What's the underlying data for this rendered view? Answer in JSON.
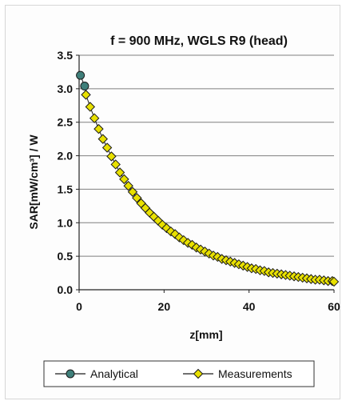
{
  "chart_data": {
    "type": "scatter",
    "title": "f = 900 MHz, WGLS R9 (head)",
    "xlabel": "z[mm]",
    "ylabel": "SAR[mW/cm³] / W",
    "xlim": [
      0,
      60
    ],
    "ylim": [
      0,
      3.5
    ],
    "xticks": [
      "0",
      "20",
      "40",
      "60"
    ],
    "yticks": [
      "0.0",
      "0.5",
      "1.0",
      "1.5",
      "2.0",
      "2.5",
      "3.0",
      "3.5"
    ],
    "grid": "horizontal",
    "legend_position": "bottom",
    "series": [
      {
        "name": "Analytical",
        "color": "#3f7f7a",
        "marker": "circle",
        "x": [
          0.3,
          1.3
        ],
        "y": [
          3.2,
          3.04
        ]
      },
      {
        "name": "Measurements",
        "color": "#e8e000",
        "marker": "diamond",
        "x": [
          1.6,
          2.6,
          3.6,
          4.6,
          5.6,
          6.6,
          7.6,
          8.6,
          9.6,
          10.6,
          11.6,
          12.6,
          13.6,
          14.6,
          15.6,
          16.6,
          17.6,
          18.6,
          19.6,
          20.6,
          21.6,
          22.6,
          23.6,
          24.6,
          25.6,
          26.6,
          27.6,
          28.6,
          29.6,
          30.6,
          31.6,
          32.6,
          33.6,
          34.6,
          35.6,
          36.6,
          37.6,
          38.6,
          39.6,
          40.6,
          41.6,
          42.6,
          43.6,
          44.6,
          45.6,
          46.6,
          47.6,
          48.6,
          49.6,
          50.6,
          51.6,
          52.6,
          53.6,
          54.6,
          55.6,
          56.6,
          57.6,
          58.6,
          59.6,
          60
        ],
        "y": [
          2.91,
          2.73,
          2.56,
          2.4,
          2.25,
          2.12,
          1.99,
          1.87,
          1.75,
          1.65,
          1.55,
          1.46,
          1.37,
          1.29,
          1.22,
          1.15,
          1.09,
          1.03,
          0.97,
          0.92,
          0.87,
          0.83,
          0.78,
          0.74,
          0.7,
          0.67,
          0.63,
          0.6,
          0.57,
          0.54,
          0.51,
          0.49,
          0.46,
          0.44,
          0.42,
          0.4,
          0.38,
          0.36,
          0.34,
          0.32,
          0.31,
          0.29,
          0.28,
          0.26,
          0.25,
          0.24,
          0.23,
          0.22,
          0.21,
          0.2,
          0.19,
          0.18,
          0.17,
          0.16,
          0.15,
          0.15,
          0.14,
          0.13,
          0.13,
          0.12
        ]
      }
    ]
  }
}
